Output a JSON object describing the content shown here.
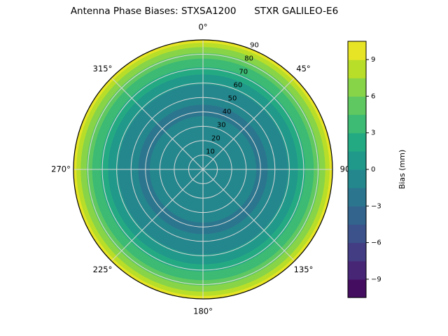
{
  "title": "Antenna Phase Biases: STXSA1200      STXR GALILEO-E6",
  "chart_data": {
    "type": "heatmap",
    "projection": "polar",
    "title": "Antenna Phase Biases: STXSA1200      STXR GALILEO-E6",
    "antenna": "STXSA1200",
    "signal": "STXR GALILEO-E6",
    "azimuth_tick_labels": [
      "0°",
      "45°",
      "90",
      "135°",
      "180°",
      "225°",
      "270°",
      "315°"
    ],
    "azimuth_tick_degrees": [
      0,
      45,
      90,
      135,
      180,
      225,
      270,
      315
    ],
    "radial_tick_labels": [
      "10",
      "20",
      "30",
      "40",
      "50",
      "60",
      "70",
      "80",
      "90"
    ],
    "radial_axis_note": "zenith angle in degrees, 0 at center to 90 at outer edge; radial labels drawn along 22.5 deg azimuth",
    "grid": true,
    "radial_profile": {
      "note": "bias is approximately azimuth-symmetric; values in mm by zenith angle",
      "zenith_deg": [
        0,
        10,
        20,
        30,
        40,
        50,
        55,
        60,
        65,
        70,
        75,
        80,
        83,
        86,
        88,
        90
      ],
      "bias_mm": [
        -0.3,
        -0.6,
        -1.0,
        -1.3,
        -1.6,
        -1.4,
        -0.8,
        0.2,
        1.3,
        2.6,
        4.0,
        5.6,
        6.8,
        7.9,
        8.8,
        9.8
      ]
    },
    "colorbar": {
      "label": "Bias (mm)",
      "ticks": [
        -9,
        -6,
        -3,
        0,
        3,
        6,
        9
      ],
      "min": -10.5,
      "max": 10.5,
      "level_step": 1.5,
      "colormap": "viridis",
      "position": "right"
    },
    "colormap_stops": [
      [
        0.0,
        "#440154"
      ],
      [
        0.1,
        "#482475"
      ],
      [
        0.2,
        "#414487"
      ],
      [
        0.3,
        "#355f8d"
      ],
      [
        0.4,
        "#2a788e"
      ],
      [
        0.5,
        "#21908d"
      ],
      [
        0.6,
        "#22a884"
      ],
      [
        0.7,
        "#44bf70"
      ],
      [
        0.8,
        "#7ad151"
      ],
      [
        0.9,
        "#bddf26"
      ],
      [
        1.0,
        "#fde725"
      ]
    ],
    "grid_color": "#d9d9d9",
    "outline_color": "#000000"
  }
}
